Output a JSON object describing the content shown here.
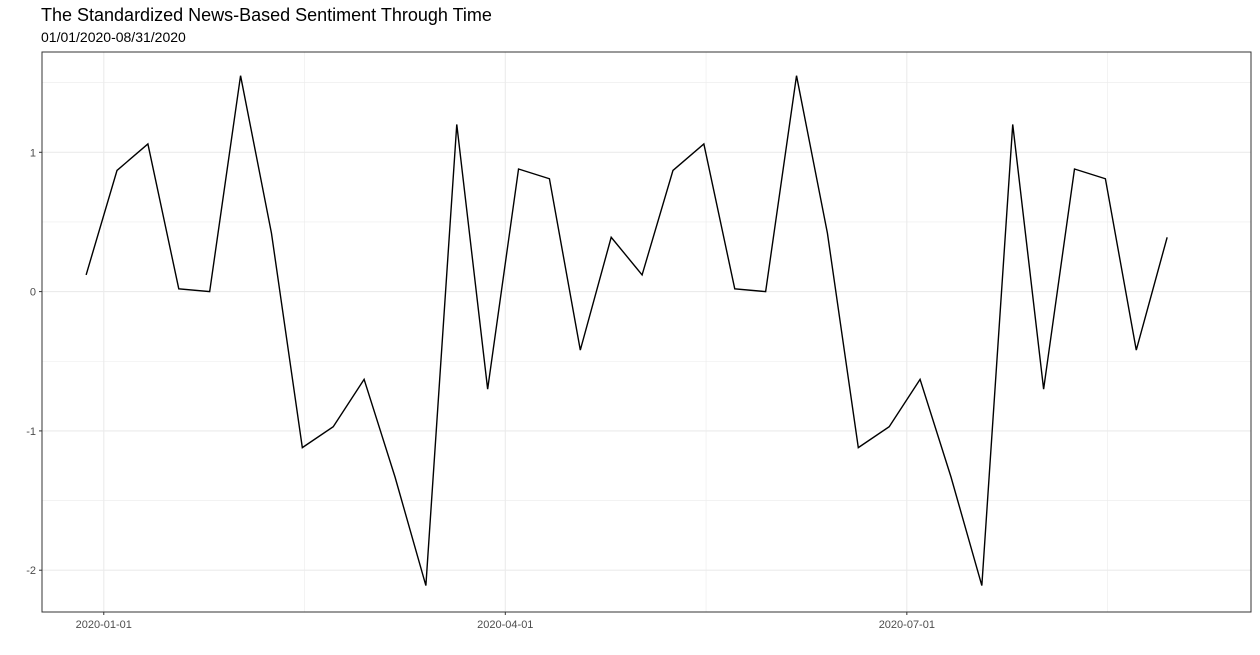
{
  "chart_data": {
    "type": "line",
    "title": "The Standardized News-Based Sentiment Through Time",
    "subtitle": "01/01/2020-08/31/2020",
    "xlabel": "",
    "ylabel": "",
    "x_tick_labels": [
      "2020-01-01",
      "2020-04-01",
      "2020-07-01"
    ],
    "y_ticks": [
      -2,
      -1,
      0,
      1
    ],
    "xlim": [
      "2019-12-18",
      "2020-09-17"
    ],
    "ylim": [
      -2.3,
      1.72
    ],
    "grid": true,
    "legend": "none",
    "colors": {
      "line": "#000000",
      "grid": "#ebebeb",
      "panel_border": "#333333"
    },
    "series": [
      {
        "x": [
          "2019-12-28",
          "2020-01-04",
          "2020-01-11",
          "2020-01-18",
          "2020-01-25",
          "2020-02-01",
          "2020-02-08",
          "2020-02-15",
          "2020-02-22",
          "2020-02-29",
          "2020-03-07",
          "2020-03-14",
          "2020-03-21",
          "2020-03-28",
          "2020-04-04",
          "2020-04-11",
          "2020-04-18",
          "2020-04-25",
          "2020-05-02",
          "2020-05-09",
          "2020-05-16",
          "2020-05-23",
          "2020-05-30",
          "2020-06-06",
          "2020-06-13",
          "2020-06-20",
          "2020-06-27",
          "2020-07-04",
          "2020-07-11",
          "2020-07-18",
          "2020-07-25",
          "2020-08-01",
          "2020-08-08",
          "2020-08-15",
          "2020-08-22",
          "2020-08-29"
        ],
        "values": [
          0.12,
          0.87,
          1.06,
          0.02,
          0.0,
          1.55,
          0.42,
          -1.12,
          -0.97,
          -0.63,
          -1.33,
          -2.11,
          1.2,
          -0.7,
          0.88,
          0.81,
          -0.42,
          0.39,
          0.12,
          0.87,
          1.06,
          0.02,
          0.0,
          1.55,
          0.42,
          -1.12,
          -0.97,
          -0.63,
          -1.33,
          -2.11,
          1.2,
          -0.7,
          0.88,
          0.81,
          -0.42,
          0.39
        ]
      }
    ]
  }
}
